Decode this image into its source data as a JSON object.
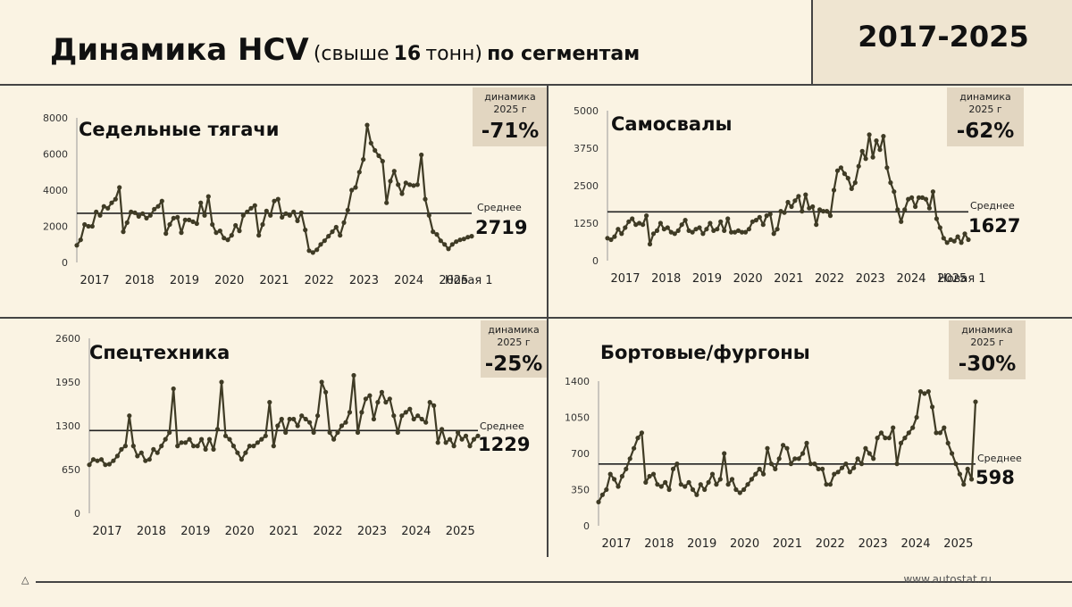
{
  "header": {
    "title_main": "Динамика HCV",
    "title_paren": "(свыше",
    "title_num": "16",
    "title_paren2": "тонн)",
    "title_tail": "по сегментам",
    "years": "2017-2025"
  },
  "footer": {
    "site": "www.autostat.ru"
  },
  "colors": {
    "line": "#3f3b25",
    "badge": "#e2d6c1",
    "bg": "#faf3e3"
  },
  "chart_data": [
    {
      "type": "line",
      "title": "Седельные тягачи",
      "badge": {
        "label1": "динамика",
        "label2": "2025 г",
        "value": "-71%"
      },
      "mean": {
        "label": "Среднее",
        "value": 2719
      },
      "ylim": [
        0,
        8000
      ],
      "yticks": [
        0,
        2000,
        4000,
        6000,
        8000
      ],
      "ytick_labels": [
        "0",
        "2000",
        "4000",
        "6000",
        "8000"
      ],
      "xtick_labels": [
        "2017",
        "2018",
        "2019",
        "2020",
        "2021",
        "2022",
        "2023",
        "2024",
        "2025"
      ],
      "extra_label": "Новая 1",
      "values": [
        950,
        1250,
        2100,
        2000,
        2000,
        2800,
        2600,
        3100,
        3000,
        3300,
        3500,
        4150,
        1700,
        2200,
        2800,
        2750,
        2550,
        2700,
        2450,
        2600,
        2950,
        3100,
        3400,
        1600,
        2100,
        2450,
        2500,
        1650,
        2350,
        2350,
        2250,
        2150,
        3300,
        2600,
        3650,
        2100,
        1650,
        1750,
        1350,
        1250,
        1500,
        2050,
        1750,
        2600,
        2800,
        3000,
        3150,
        1500,
        2100,
        2850,
        2600,
        3400,
        3500,
        2500,
        2700,
        2600,
        2800,
        2300,
        2750,
        1800,
        650,
        550,
        700,
        1000,
        1200,
        1450,
        1700,
        1950,
        1500,
        2200,
        2900,
        4000,
        4150,
        5000,
        5700,
        7600,
        6600,
        6200,
        5900,
        5600,
        3300,
        4500,
        5050,
        4300,
        3800,
        4400,
        4300,
        4250,
        4300,
        5950,
        3500,
        2600,
        1700,
        1550,
        1200,
        1000,
        750,
        1000,
        1150,
        1250,
        1300,
        1400,
        1450
      ]
    },
    {
      "type": "line",
      "title": "Самосвалы",
      "badge": {
        "label1": "динамика",
        "label2": "2025 г",
        "value": "-62%"
      },
      "mean": {
        "label": "Среднее",
        "value": 1627
      },
      "ylim": [
        0,
        5000
      ],
      "yticks": [
        0,
        1250,
        2500,
        3750,
        5000
      ],
      "ytick_labels": [
        "0",
        "1250",
        "2500",
        "3750",
        "5000"
      ],
      "xtick_labels": [
        "2017",
        "2018",
        "2019",
        "2020",
        "2021",
        "2022",
        "2023",
        "2024",
        "2025"
      ],
      "extra_label": "Новая 1",
      "values": [
        750,
        700,
        800,
        1050,
        900,
        1100,
        1300,
        1400,
        1200,
        1250,
        1200,
        1500,
        550,
        900,
        1000,
        1250,
        1050,
        1100,
        950,
        900,
        1000,
        1200,
        1350,
        1000,
        950,
        1050,
        1100,
        900,
        1050,
        1250,
        1000,
        1050,
        1300,
        1000,
        1400,
        950,
        950,
        1000,
        950,
        950,
        1050,
        1300,
        1350,
        1450,
        1200,
        1500,
        1550,
        900,
        1050,
        1650,
        1600,
        1950,
        1800,
        2000,
        2150,
        1650,
        2200,
        1750,
        1800,
        1200,
        1700,
        1650,
        1650,
        1500,
        2350,
        3000,
        3100,
        2900,
        2750,
        2400,
        2600,
        3150,
        3650,
        3400,
        4200,
        3450,
        4000,
        3700,
        4150,
        3100,
        2600,
        2300,
        1700,
        1300,
        1700,
        2050,
        2100,
        1800,
        2100,
        2100,
        2050,
        1750,
        2300,
        1400,
        1100,
        750,
        600,
        700,
        650,
        800,
        600,
        900,
        700
      ]
    },
    {
      "type": "line",
      "title": "Спецтехника",
      "badge": {
        "label1": "динамика",
        "label2": "2025 г",
        "value": "-25%"
      },
      "mean": {
        "label": "Среднее",
        "value": 1229
      },
      "ylim": [
        0,
        2600
      ],
      "yticks": [
        0,
        650,
        1300,
        1950,
        2600
      ],
      "ytick_labels": [
        "0",
        "650",
        "1300",
        "1950",
        "2600"
      ],
      "xtick_labels": [
        "2017",
        "2018",
        "2019",
        "2020",
        "2021",
        "2022",
        "2023",
        "2024",
        "2025"
      ],
      "values": [
        720,
        800,
        780,
        800,
        720,
        730,
        780,
        850,
        950,
        1000,
        1450,
        1000,
        850,
        900,
        780,
        800,
        950,
        900,
        1000,
        1100,
        1200,
        1850,
        1000,
        1050,
        1050,
        1100,
        1000,
        1000,
        1100,
        950,
        1100,
        950,
        1250,
        1950,
        1150,
        1100,
        1000,
        900,
        800,
        900,
        1000,
        1000,
        1050,
        1100,
        1150,
        1650,
        1000,
        1300,
        1400,
        1200,
        1400,
        1400,
        1300,
        1450,
        1400,
        1350,
        1200,
        1450,
        1950,
        1800,
        1200,
        1100,
        1200,
        1300,
        1350,
        1500,
        2050,
        1200,
        1500,
        1700,
        1750,
        1400,
        1650,
        1800,
        1650,
        1700,
        1450,
        1200,
        1450,
        1500,
        1550,
        1400,
        1450,
        1400,
        1350,
        1650,
        1600,
        1050,
        1250,
        1050,
        1100,
        1000,
        1200,
        1100,
        1150,
        1000,
        1100,
        1150
      ]
    },
    {
      "type": "line",
      "title": "Бортовые/фургоны",
      "badge": {
        "label1": "динамика",
        "label2": "2025 г",
        "value": "-30%"
      },
      "mean": {
        "label": "Среднее",
        "value": 598
      },
      "ylim": [
        0,
        1400
      ],
      "yticks": [
        0,
        350,
        700,
        1050,
        1400
      ],
      "ytick_labels": [
        "0",
        "350",
        "700",
        "1050",
        "1400"
      ],
      "xtick_labels": [
        "2017",
        "2018",
        "2019",
        "2020",
        "2021",
        "2022",
        "2023",
        "2024",
        "2025"
      ],
      "values": [
        230,
        300,
        350,
        500,
        450,
        380,
        480,
        550,
        650,
        750,
        850,
        900,
        420,
        480,
        500,
        400,
        380,
        420,
        350,
        550,
        600,
        400,
        380,
        420,
        350,
        300,
        400,
        350,
        420,
        500,
        400,
        450,
        700,
        400,
        450,
        350,
        320,
        350,
        400,
        450,
        500,
        550,
        500,
        750,
        600,
        550,
        650,
        780,
        750,
        600,
        650,
        650,
        700,
        800,
        600,
        600,
        550,
        550,
        400,
        400,
        500,
        520,
        560,
        600,
        520,
        560,
        650,
        600,
        750,
        700,
        650,
        850,
        900,
        850,
        850,
        950,
        600,
        800,
        850,
        900,
        950,
        1050,
        1300,
        1280,
        1300,
        1150,
        900,
        900,
        950,
        800,
        700,
        600,
        500,
        400,
        550,
        450,
        1200
      ]
    }
  ]
}
